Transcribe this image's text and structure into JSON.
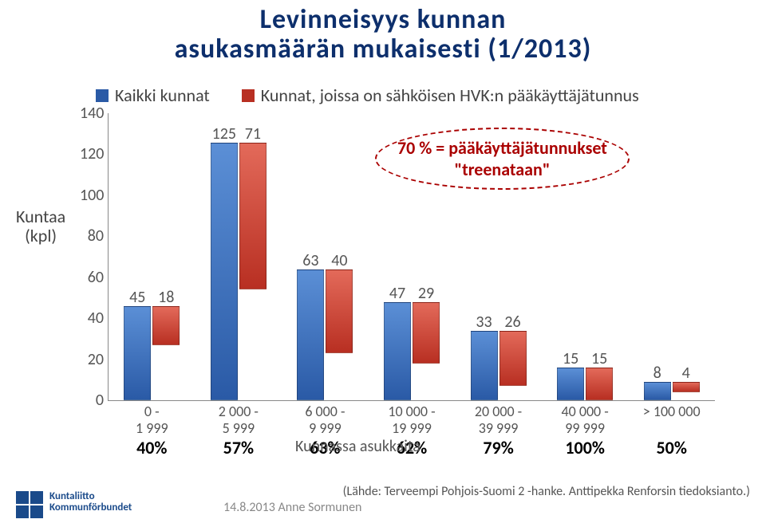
{
  "title": {
    "line1": "Levinneisyys kunnan",
    "line2": "asukasmäärän mukaisesti (1/2013)",
    "color": "#0d2f6c",
    "fontsize": 34
  },
  "legend": [
    {
      "label": "Kaikki kunnat",
      "color": "#2a5aa6"
    },
    {
      "label": "Kunnat, joissa on sähköisen HVK:n pääkäyttäjätunnus",
      "color": "#b82f22"
    }
  ],
  "bubble": {
    "line1": "70 % = pääkäyttäjätunnukset",
    "line2": "\"treenataan\"",
    "border": "#a00"
  },
  "yaxis": {
    "title1": "Kuntaa",
    "title2": "(kpl)",
    "min": 0,
    "max": 140,
    "step": 20
  },
  "xaxis": {
    "title": "Kunnassa asukkaita"
  },
  "chart": {
    "type": "bar",
    "barColors": [
      "#2a5aa6",
      "#b82f22"
    ],
    "valueFont": 20,
    "data": [
      {
        "x": "0 - 1 999",
        "a": 45,
        "b": 18,
        "pct": "40%"
      },
      {
        "x": "2 000 - 5 999",
        "a": 125,
        "b": 71,
        "pct": "57%"
      },
      {
        "x": "6 000 - 9 999",
        "a": 63,
        "b": 40,
        "pct": "63%"
      },
      {
        "x": "10 000 - 19 999",
        "a": 47,
        "b": 29,
        "pct": "62%"
      },
      {
        "x": "20 000 - 39 999",
        "a": 33,
        "b": 26,
        "pct": "79%"
      },
      {
        "x": "40 000 - 99 999",
        "a": 15,
        "b": 15,
        "pct": "100%"
      },
      {
        "x": "> 100 000",
        "a": 8,
        "b": 4,
        "pct": "50%"
      }
    ]
  },
  "footer": {
    "logo": {
      "line1": "Kuntaliitto",
      "line2": "Kommunförbundet"
    },
    "date": "14.8.2013 Anne Sormunen",
    "source": "(Lähde: Terveempi Pohjois-Suomi 2 -hanke. Anttipekka Renforsin tiedoksianto.)"
  }
}
